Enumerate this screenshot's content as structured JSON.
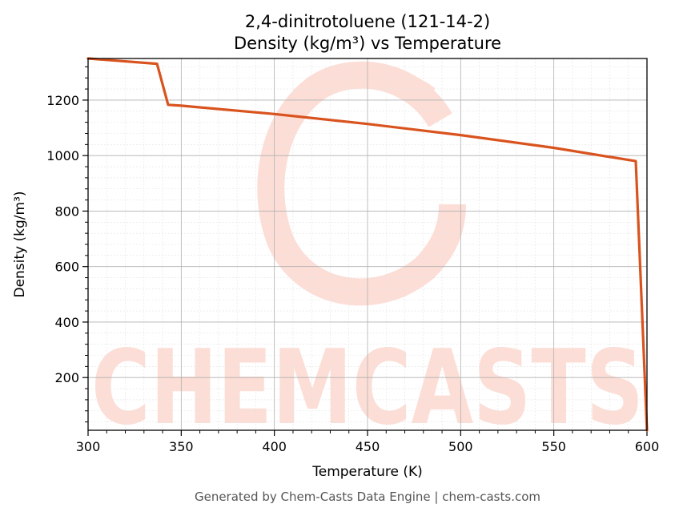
{
  "chart_data": {
    "type": "line",
    "title_line1": "2,4-dinitrotoluene (121-14-2)",
    "title_line2": "Density (kg/m³) vs Temperature",
    "xlabel": "Temperature (K)",
    "ylabel": "Density (kg/m³)",
    "xlim": [
      300,
      600
    ],
    "ylim": [
      10,
      1350
    ],
    "x_ticks": [
      300,
      350,
      400,
      450,
      500,
      550,
      600
    ],
    "y_ticks": [
      200,
      400,
      600,
      800,
      1000,
      1200
    ],
    "grid": true,
    "line_color": "#d9531e",
    "series": [
      {
        "x": [
          300,
          337,
          343,
          350,
          400,
          450,
          500,
          550,
          594,
          600
        ],
        "values": [
          1350,
          1331,
          1183,
          1180,
          1150,
          1114,
          1074,
          1028,
          980,
          10
        ]
      }
    ]
  },
  "watermark": {
    "text": "CHEMCASTS",
    "color": "#fbd3c9"
  },
  "footer": "Generated by Chem-Casts Data Engine | chem-casts.com"
}
